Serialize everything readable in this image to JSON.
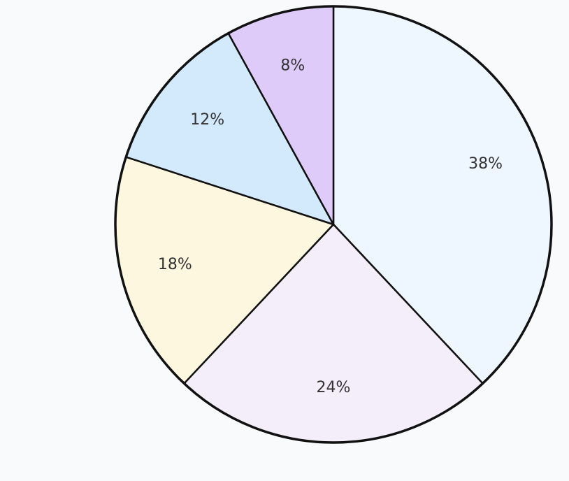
{
  "chart_data": {
    "type": "pie",
    "values": [
      38,
      24,
      18,
      12,
      8
    ],
    "value_labels": [
      "38%",
      "24%",
      "18%",
      "12%",
      "8%"
    ],
    "colors": [
      "#eef6ff",
      "#f4eefb",
      "#fdf7e0",
      "#d3e9fc",
      "#dfcbfa"
    ],
    "start_angle": 0,
    "direction": "clockwise"
  }
}
